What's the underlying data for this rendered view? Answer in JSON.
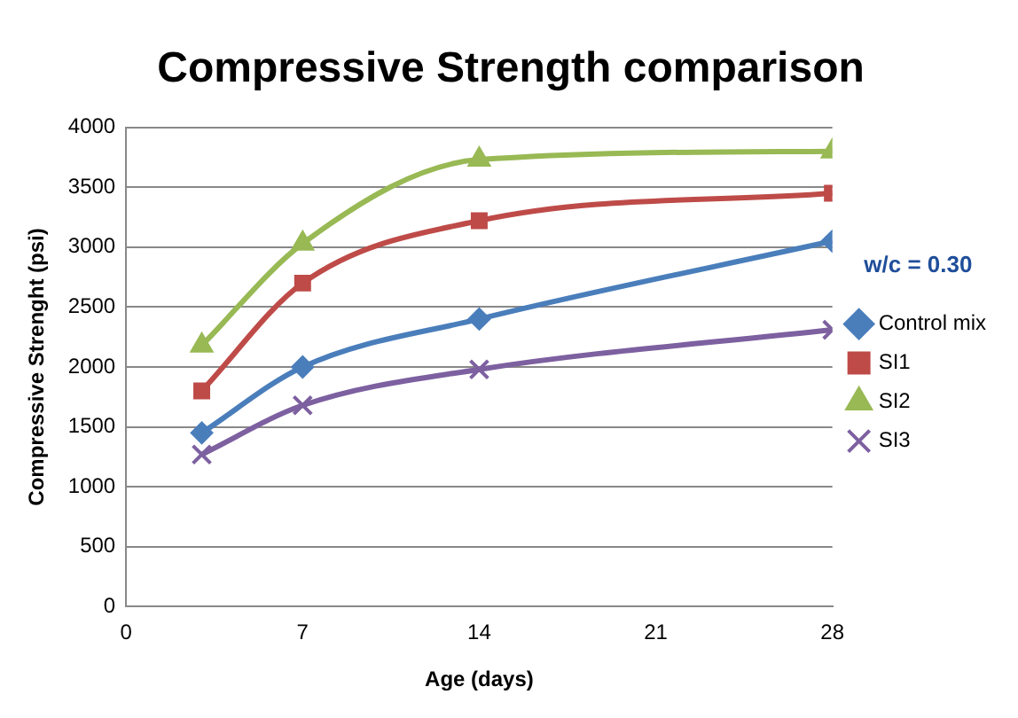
{
  "chart_data": {
    "type": "line",
    "title": "Compressive Strength comparison",
    "xlabel": "Age (days)",
    "ylabel": "Compressive Strenght (psi)",
    "legend_title": "w/c = 0.30",
    "x": [
      3,
      7,
      14,
      28
    ],
    "series": [
      {
        "name": "Control mix",
        "color": "#4a7ebb",
        "marker": "diamond",
        "values": [
          1450,
          2000,
          2400,
          3050
        ]
      },
      {
        "name": "SI1",
        "color": "#be4b48",
        "marker": "square",
        "values": [
          1800,
          2700,
          3220,
          3450
        ]
      },
      {
        "name": "SI2",
        "color": "#98b954",
        "marker": "triangle",
        "values": [
          2180,
          3030,
          3730,
          3800
        ]
      },
      {
        "name": "SI3",
        "color": "#7d60a0",
        "marker": "cross",
        "values": [
          1270,
          1680,
          1980,
          2310
        ]
      }
    ],
    "xlim": [
      0,
      28
    ],
    "xticks": [
      0,
      7,
      14,
      21,
      28
    ],
    "ylim": [
      0,
      4000
    ],
    "yticks": [
      0,
      500,
      1000,
      1500,
      2000,
      2500,
      3000,
      3500,
      4000
    ],
    "grid": "y",
    "legend": "right",
    "line_style": "solid"
  }
}
